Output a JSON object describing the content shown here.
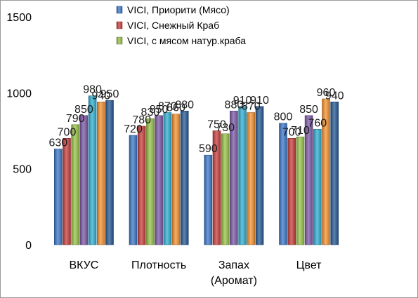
{
  "chart_data": {
    "type": "bar",
    "categories": [
      "ВКУС",
      "Плотность",
      "Запах (Аромат)",
      "Цвет"
    ],
    "category_lines": [
      [
        "ВКУС"
      ],
      [
        "Плотность"
      ],
      [
        "Запах",
        "(Аромат)"
      ],
      [
        "Цвет"
      ]
    ],
    "series": [
      {
        "name": "VICI, Приорити (Мясо)",
        "color": "#3d79c9",
        "values": [
          630,
          720,
          590,
          800
        ]
      },
      {
        "name": "VICI, Снежный Краб",
        "color": "#c8403d",
        "values": [
          700,
          780,
          750,
          700
        ]
      },
      {
        "name": "VICI, с мясом натур.краба",
        "color": "#9ac34a",
        "values": [
          790,
          830,
          730,
          710
        ]
      },
      {
        "name": "",
        "color": "#7e5ba8",
        "values": [
          850,
          850,
          880,
          850
        ]
      },
      {
        "name": "",
        "color": "#33afd1",
        "values": [
          980,
          870,
          910,
          760
        ]
      },
      {
        "name": "",
        "color": "#f59331",
        "values": [
          940,
          860,
          870,
          960
        ]
      },
      {
        "name": "",
        "color": "#285a95",
        "values": [
          950,
          880,
          910,
          940
        ]
      }
    ],
    "ylim": [
      0,
      1500
    ],
    "yticks": [
      0,
      500,
      1000,
      1500
    ],
    "title": "",
    "xlabel": "",
    "ylabel": "",
    "grid": false,
    "legend_position": "top-center"
  }
}
